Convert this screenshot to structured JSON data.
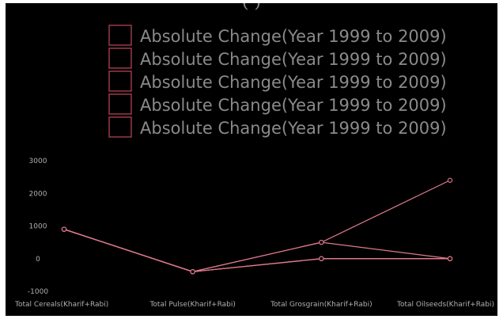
{
  "top_fragment": "(                                                   )",
  "chart_data": {
    "type": "line",
    "categories": [
      "Total Cereals(Kharif+Rabi)",
      "Total Pulse(Kharif+Rabi)",
      "Total Grosgrain(Kharif+Rabi)",
      "Total Oilseeds(Kharif+Rabi)"
    ],
    "ylim": [
      -1000,
      3000
    ],
    "yticks": [
      -1000,
      0,
      1000,
      2000,
      3000
    ],
    "grid": false,
    "legend_placement": "top",
    "series": [
      {
        "name": "Absolute Change(Year 1999 to 2009)",
        "values": [
          900,
          -400,
          500,
          2400
        ]
      },
      {
        "name": "Absolute Change(Year 1999 to 2009)",
        "values": [
          900,
          -400,
          500,
          0
        ]
      },
      {
        "name": "Absolute Change(Year 1999 to 2009)",
        "values": [
          900,
          -400,
          0,
          0
        ]
      },
      {
        "name": "Absolute Change(Year 1999 to 2009)",
        "values": [
          900,
          -400,
          0,
          0
        ]
      },
      {
        "name": "Absolute Change(Year 1999 to 2009)",
        "values": [
          900,
          -400,
          0,
          0
        ]
      }
    ],
    "colors": {
      "line": "#e07a8c",
      "legend_box": "#c2455c",
      "background": "#000000"
    }
  }
}
